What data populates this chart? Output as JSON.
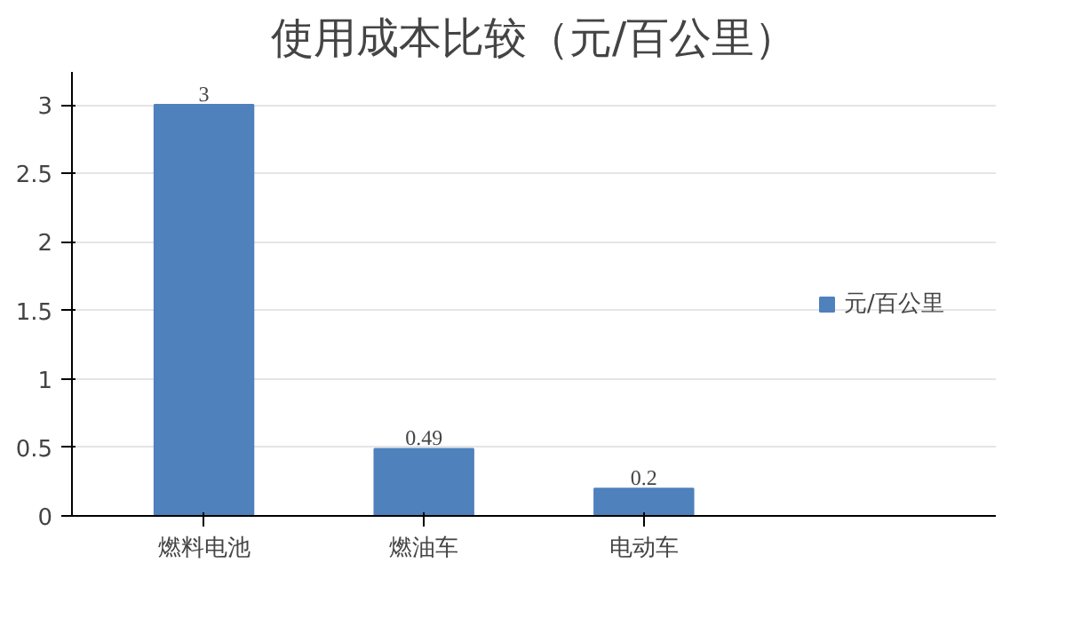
{
  "chart_data": {
    "type": "bar",
    "title": "使用成本比较（元/百公里）",
    "categories": [
      "燃料电池",
      "燃油车",
      "电动车"
    ],
    "series": [
      {
        "name": "元/百公里",
        "color": "#4f81bd",
        "values": [
          3,
          0.49,
          0.2
        ]
      }
    ],
    "ylim": [
      0,
      3
    ],
    "yticks": [
      0,
      0.5,
      1,
      1.5,
      2,
      2.5,
      3
    ],
    "grid": "y",
    "legend": "right",
    "data_labels": true
  }
}
